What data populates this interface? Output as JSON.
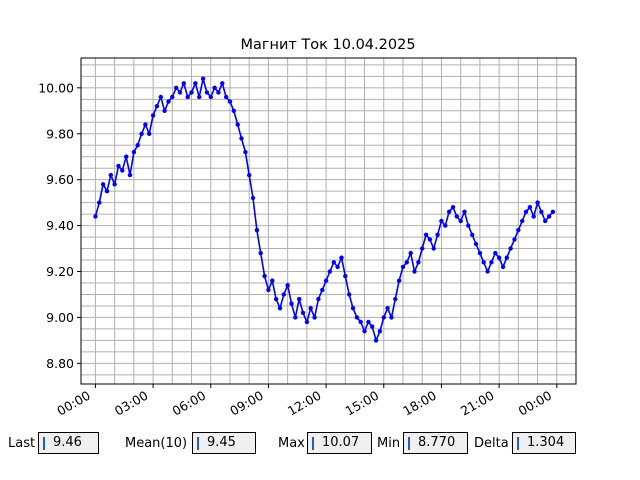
{
  "chart_data": {
    "type": "line",
    "title": "Магнит Ток 10.04.2025",
    "xlabel": "",
    "ylabel": "",
    "x_ticks": [
      "00:00",
      "03:00",
      "06:00",
      "09:00",
      "12:00",
      "15:00",
      "18:00",
      "21:00",
      "00:00"
    ],
    "y_ticks": [
      "8.80",
      "9.00",
      "9.20",
      "9.40",
      "9.60",
      "9.80",
      "10.00"
    ],
    "xlim_hours": [
      -0.75,
      25.0
    ],
    "ylim": [
      8.71,
      10.13
    ],
    "grid": true,
    "series_color": "#0000ff",
    "marker": "circle",
    "points": [
      [
        0.0,
        9.44
      ],
      [
        0.2,
        9.5
      ],
      [
        0.4,
        9.58
      ],
      [
        0.6,
        9.55
      ],
      [
        0.8,
        9.62
      ],
      [
        1.0,
        9.58
      ],
      [
        1.2,
        9.66
      ],
      [
        1.4,
        9.64
      ],
      [
        1.6,
        9.7
      ],
      [
        1.8,
        9.62
      ],
      [
        2.0,
        9.72
      ],
      [
        2.2,
        9.75
      ],
      [
        2.4,
        9.8
      ],
      [
        2.6,
        9.84
      ],
      [
        2.8,
        9.8
      ],
      [
        3.0,
        9.88
      ],
      [
        3.2,
        9.92
      ],
      [
        3.4,
        9.96
      ],
      [
        3.6,
        9.9
      ],
      [
        3.8,
        9.94
      ],
      [
        4.0,
        9.96
      ],
      [
        4.2,
        10.0
      ],
      [
        4.4,
        9.98
      ],
      [
        4.6,
        10.02
      ],
      [
        4.8,
        9.96
      ],
      [
        5.0,
        9.98
      ],
      [
        5.2,
        10.02
      ],
      [
        5.4,
        9.96
      ],
      [
        5.6,
        10.04
      ],
      [
        5.8,
        9.98
      ],
      [
        6.0,
        9.96
      ],
      [
        6.2,
        10.0
      ],
      [
        6.4,
        9.98
      ],
      [
        6.6,
        10.02
      ],
      [
        6.8,
        9.96
      ],
      [
        7.0,
        9.94
      ],
      [
        7.2,
        9.9
      ],
      [
        7.4,
        9.84
      ],
      [
        7.6,
        9.78
      ],
      [
        7.8,
        9.72
      ],
      [
        8.0,
        9.62
      ],
      [
        8.2,
        9.52
      ],
      [
        8.4,
        9.38
      ],
      [
        8.6,
        9.28
      ],
      [
        8.8,
        9.18
      ],
      [
        9.0,
        9.12
      ],
      [
        9.2,
        9.16
      ],
      [
        9.4,
        9.08
      ],
      [
        9.6,
        9.04
      ],
      [
        9.8,
        9.1
      ],
      [
        10.0,
        9.14
      ],
      [
        10.2,
        9.06
      ],
      [
        10.4,
        9.0
      ],
      [
        10.6,
        9.08
      ],
      [
        10.8,
        9.02
      ],
      [
        11.0,
        8.98
      ],
      [
        11.2,
        9.04
      ],
      [
        11.4,
        9.0
      ],
      [
        11.6,
        9.08
      ],
      [
        11.8,
        9.12
      ],
      [
        12.0,
        9.16
      ],
      [
        12.2,
        9.2
      ],
      [
        12.4,
        9.24
      ],
      [
        12.6,
        9.22
      ],
      [
        12.8,
        9.26
      ],
      [
        13.0,
        9.18
      ],
      [
        13.2,
        9.1
      ],
      [
        13.4,
        9.04
      ],
      [
        13.6,
        9.0
      ],
      [
        13.8,
        8.98
      ],
      [
        14.0,
        8.94
      ],
      [
        14.2,
        8.98
      ],
      [
        14.4,
        8.96
      ],
      [
        14.6,
        8.9
      ],
      [
        14.8,
        8.94
      ],
      [
        15.0,
        9.0
      ],
      [
        15.2,
        9.04
      ],
      [
        15.4,
        9.0
      ],
      [
        15.6,
        9.08
      ],
      [
        15.8,
        9.16
      ],
      [
        16.0,
        9.22
      ],
      [
        16.2,
        9.24
      ],
      [
        16.4,
        9.28
      ],
      [
        16.6,
        9.2
      ],
      [
        16.8,
        9.24
      ],
      [
        17.0,
        9.3
      ],
      [
        17.2,
        9.36
      ],
      [
        17.4,
        9.34
      ],
      [
        17.6,
        9.3
      ],
      [
        17.8,
        9.36
      ],
      [
        18.0,
        9.42
      ],
      [
        18.2,
        9.4
      ],
      [
        18.4,
        9.46
      ],
      [
        18.6,
        9.48
      ],
      [
        18.8,
        9.44
      ],
      [
        19.0,
        9.42
      ],
      [
        19.2,
        9.46
      ],
      [
        19.4,
        9.4
      ],
      [
        19.6,
        9.36
      ],
      [
        19.8,
        9.32
      ],
      [
        20.0,
        9.28
      ],
      [
        20.2,
        9.24
      ],
      [
        20.4,
        9.2
      ],
      [
        20.6,
        9.24
      ],
      [
        20.8,
        9.28
      ],
      [
        21.0,
        9.26
      ],
      [
        21.2,
        9.22
      ],
      [
        21.4,
        9.26
      ],
      [
        21.6,
        9.3
      ],
      [
        21.8,
        9.34
      ],
      [
        22.0,
        9.38
      ],
      [
        22.2,
        9.42
      ],
      [
        22.4,
        9.46
      ],
      [
        22.6,
        9.48
      ],
      [
        22.8,
        9.44
      ],
      [
        23.0,
        9.5
      ],
      [
        23.2,
        9.46
      ],
      [
        23.4,
        9.42
      ],
      [
        23.6,
        9.44
      ],
      [
        23.8,
        9.46
      ]
    ]
  },
  "stats": {
    "last_label": "Last",
    "last_value": "9.46",
    "mean_label": "Mean(10)",
    "mean_value": "9.45",
    "max_label": "Max",
    "max_value": "10.07",
    "min_label": "Min",
    "min_value": "8.770",
    "delta_label": "Delta",
    "delta_value": "1.304"
  }
}
